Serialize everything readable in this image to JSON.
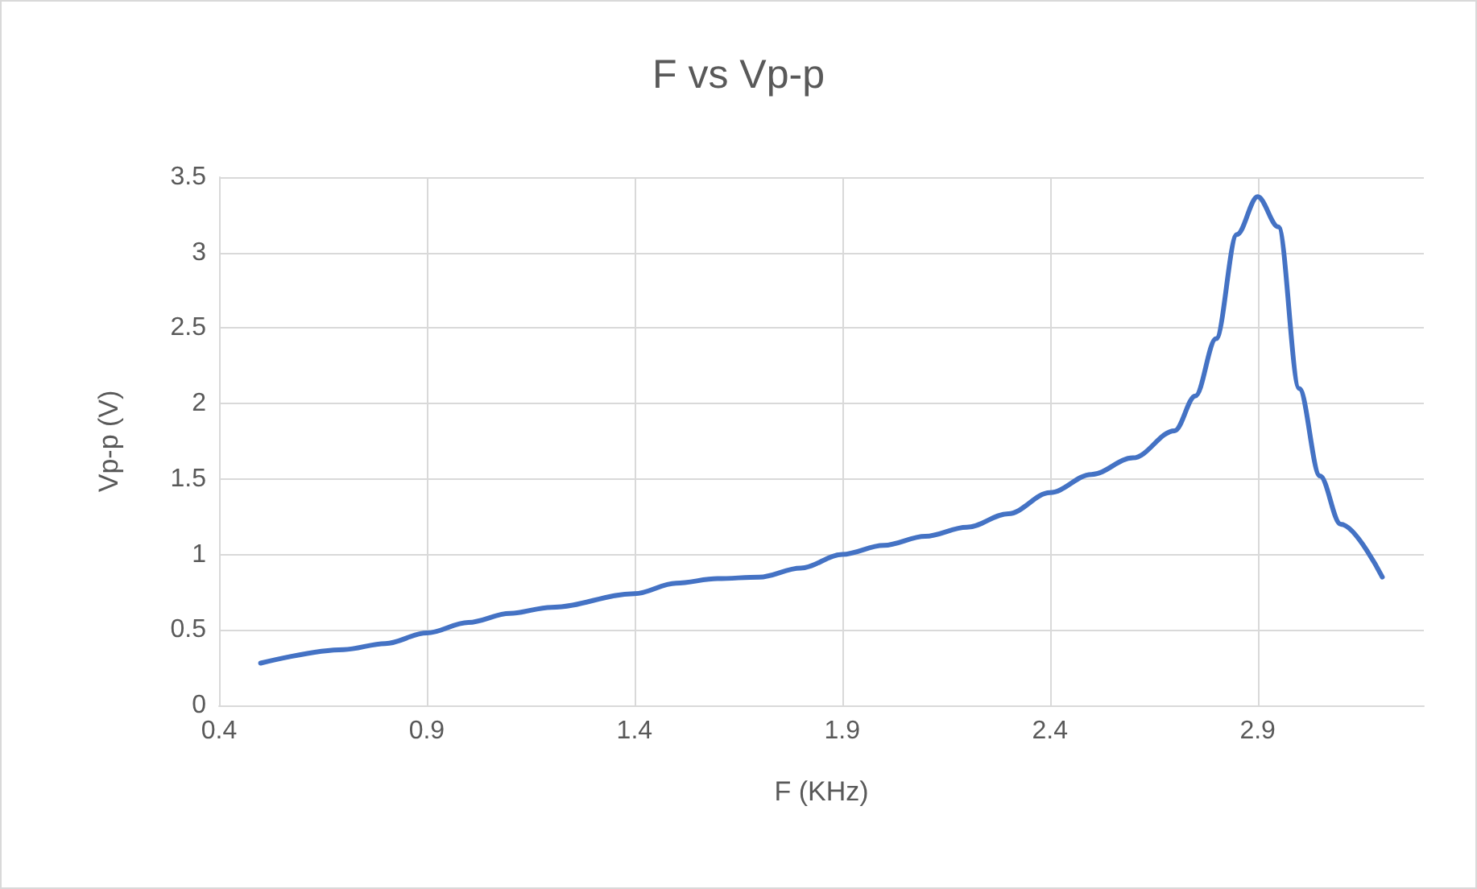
{
  "chart_data": {
    "type": "line",
    "title": "F vs Vp-p",
    "xlabel": "F (KHz)",
    "ylabel": "Vp-p (V)",
    "x": [
      0.5,
      0.7,
      0.8,
      0.9,
      1.0,
      1.1,
      1.2,
      1.4,
      1.5,
      1.6,
      1.7,
      1.8,
      1.9,
      2.0,
      2.1,
      2.2,
      2.3,
      2.4,
      2.5,
      2.6,
      2.7,
      2.75,
      2.8,
      2.85,
      2.9,
      2.95,
      3.0,
      3.05,
      3.1,
      3.2
    ],
    "series": [
      {
        "color": "#4472c4",
        "values": [
          0.28,
          0.37,
          0.41,
          0.48,
          0.55,
          0.61,
          0.65,
          0.74,
          0.81,
          0.84,
          0.85,
          0.91,
          1.0,
          1.06,
          1.12,
          1.18,
          1.27,
          1.41,
          1.53,
          1.64,
          1.82,
          2.05,
          2.43,
          3.12,
          3.37,
          3.17,
          2.1,
          1.52,
          1.2,
          0.85
        ]
      }
    ],
    "xlim": [
      0.4,
      3.3
    ],
    "xticks": [
      0.4,
      0.9,
      1.4,
      1.9,
      2.4,
      2.9
    ],
    "ylim": [
      0,
      3.5
    ],
    "yticks": [
      0,
      0.5,
      1,
      1.5,
      2,
      2.5,
      3,
      3.5
    ],
    "grid": true,
    "marker": "none",
    "line_style": "solid"
  }
}
